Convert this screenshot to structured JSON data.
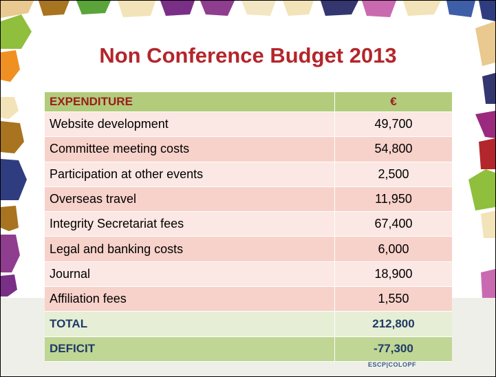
{
  "title": "Non Conference Budget 2013",
  "table": {
    "header": [
      "EXPENDITURE",
      "€"
    ],
    "rows": [
      [
        "Website development",
        "49,700"
      ],
      [
        "Committee meeting costs",
        "54,800"
      ],
      [
        "Participation at other events",
        "2,500"
      ],
      [
        "Overseas travel",
        "11,950"
      ],
      [
        "Integrity Secretariat fees",
        "67,400"
      ],
      [
        "Legal and banking costs",
        "6,000"
      ],
      [
        "Journal",
        "18,900"
      ],
      [
        "Affiliation fees",
        "1,550"
      ]
    ],
    "total": [
      "TOTAL",
      "212,800"
    ],
    "deficit": [
      "DEFICIT",
      "-77,300"
    ]
  },
  "footer_logo": "ESCP|COLOPF"
}
